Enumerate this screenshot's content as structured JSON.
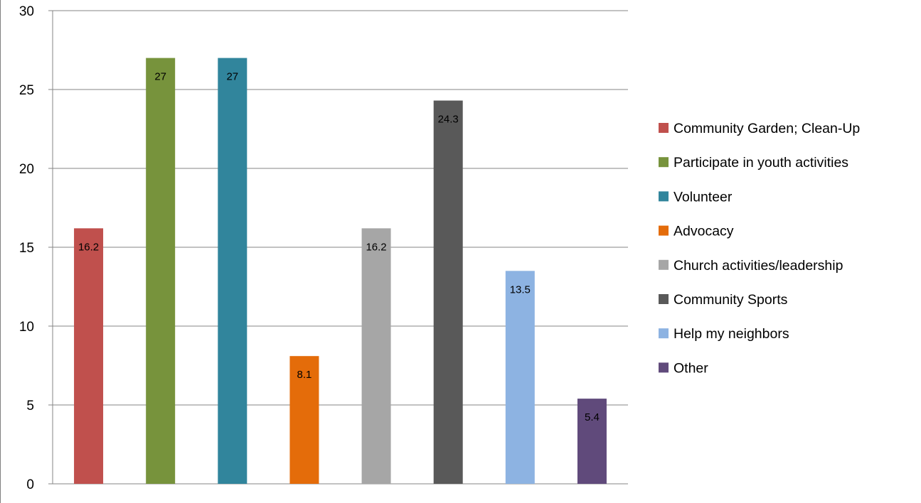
{
  "chart_data": {
    "type": "bar",
    "title": "",
    "xlabel": "",
    "ylabel": "",
    "ylim": [
      0,
      30
    ],
    "y_ticks": [
      0,
      5,
      10,
      15,
      20,
      25,
      30
    ],
    "grid": true,
    "legend_position": "right",
    "categories": [
      "Community Garden; Clean-Up",
      "Participate in youth activities",
      "Volunteer",
      "Advocacy",
      "Church activities/leadership",
      "Community Sports",
      "Help my neighbors",
      "Other"
    ],
    "values": [
      16.2,
      27,
      27,
      8.1,
      16.2,
      24.3,
      13.5,
      5.4
    ],
    "data_labels": [
      "16.2",
      "27",
      "27",
      "8.1",
      "16.2",
      "24.3",
      "13.5",
      "5.4"
    ],
    "colors": [
      "#c0504d",
      "#77933c",
      "#31859c",
      "#e46c0a",
      "#a6a6a6",
      "#595959",
      "#8db3e2",
      "#604a7b"
    ]
  }
}
